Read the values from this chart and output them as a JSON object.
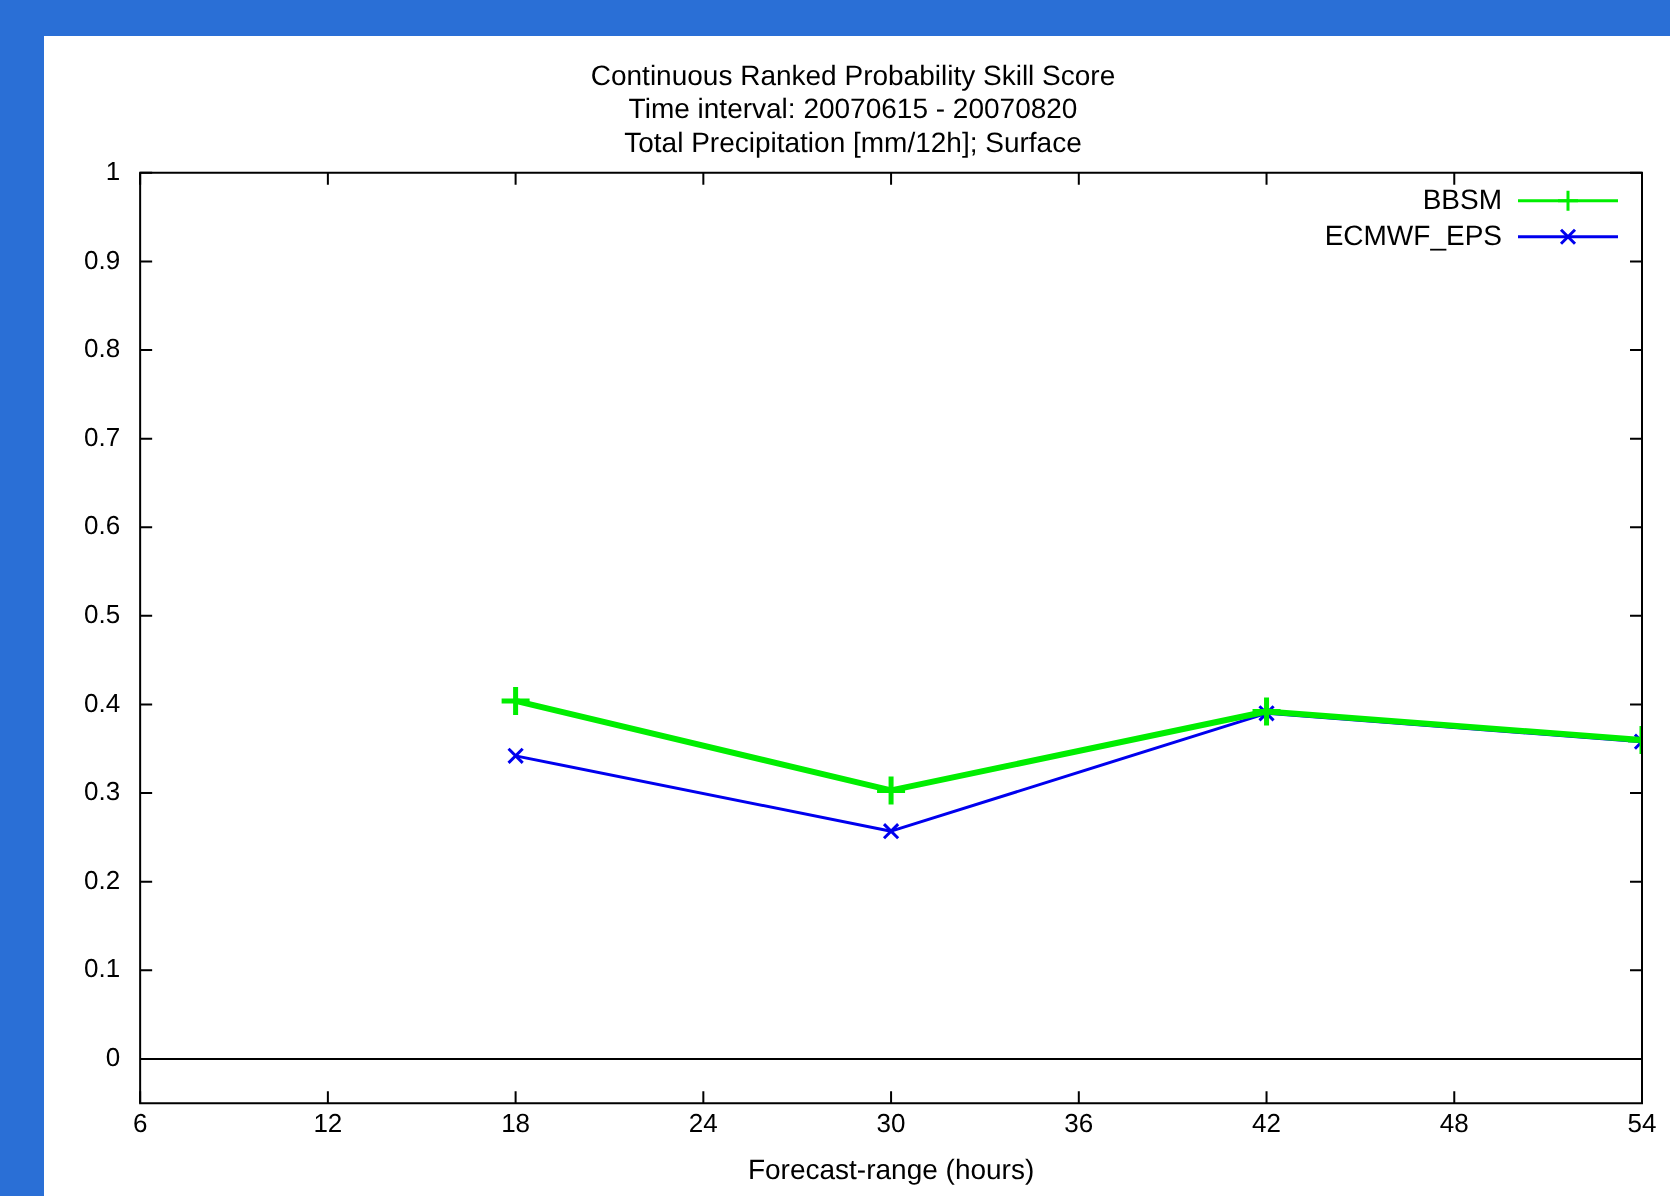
{
  "chart_data": {
    "type": "line",
    "title": "Continuous Ranked Probability Skill Score",
    "subtitle": "Time interval: 20070615 - 20070820\nTotal Precipitation [mm/12h]; Surface",
    "xlabel": "Forecast-range (hours)",
    "x": [
      18,
      30,
      42,
      54
    ],
    "series": [
      {
        "name": "BBSM",
        "color": "#00ee00",
        "values": [
          0.404,
          0.303,
          0.392,
          0.36
        ]
      },
      {
        "name": "ECMWF_EPS",
        "color": "#0000ee",
        "values": [
          0.342,
          0.257,
          0.39,
          0.358
        ]
      }
    ],
    "xlim": [
      6,
      54
    ],
    "xticks": [
      6,
      12,
      18,
      24,
      30,
      36,
      42,
      48,
      54
    ],
    "ylim": [
      -0.05,
      1
    ],
    "yticks": [
      0,
      0.1,
      0.2,
      0.3,
      0.4,
      0.5,
      0.6,
      0.7,
      0.8,
      0.9,
      1
    ],
    "ref_lines": [
      {
        "axis": "y",
        "value": 0,
        "color": "#000000"
      }
    ],
    "grid": false,
    "legend": "top right",
    "marker": "cross",
    "line_style": "solid"
  }
}
